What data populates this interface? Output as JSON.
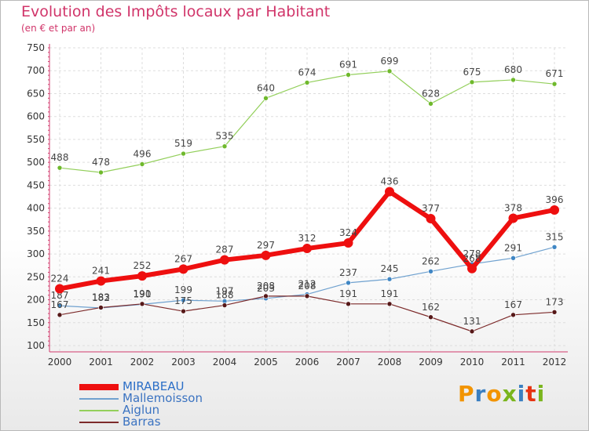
{
  "header": {
    "title": "Evolution des Impôts locaux par Habitant",
    "subtitle": "(en € et par an)"
  },
  "logo": {
    "text": "Proxiti",
    "colors": [
      "#f29400",
      "#3a7fc1",
      "#f29400",
      "#7ab51d",
      "#3a7fc1",
      "#e63312",
      "#7ab51d"
    ]
  },
  "chart_data": {
    "type": "line",
    "title": "Evolution des Impôts locaux par Habitant",
    "subtitle": "(en € et par an)",
    "xlabel": "",
    "ylabel": "",
    "categories": [
      "2000",
      "2001",
      "2002",
      "2003",
      "2004",
      "2005",
      "2006",
      "2007",
      "2008",
      "2009",
      "2010",
      "2011",
      "2012"
    ],
    "ylim": [
      100,
      750
    ],
    "yticks": [
      100,
      150,
      200,
      250,
      300,
      350,
      400,
      450,
      500,
      550,
      600,
      650,
      700,
      750
    ],
    "grid": true,
    "legend_position": "bottom-left",
    "series": [
      {
        "name": "Aiglun",
        "color": "#93cf5b",
        "marker": "#6fb92c",
        "width": 1.2,
        "values": [
          488,
          478,
          496,
          519,
          535,
          640,
          674,
          691,
          699,
          628,
          675,
          680,
          671
        ]
      },
      {
        "name": "Mallemoisson",
        "color": "#6fa1cf",
        "marker": "#3f86c4",
        "width": 1.2,
        "values": [
          187,
          182,
          190,
          199,
          197,
          203,
          212,
          237,
          245,
          262,
          278,
          291,
          315
        ]
      },
      {
        "name": "Barras",
        "color": "#7c2a2a",
        "marker": "#561818",
        "width": 1.2,
        "values": [
          167,
          183,
          191,
          175,
          188,
          208,
          208,
          191,
          191,
          162,
          131,
          167,
          173
        ]
      },
      {
        "name": "MIRABEAU",
        "color": "#ee0f0f",
        "marker": "#ee0f0f",
        "width": 6,
        "values": [
          224,
          241,
          252,
          267,
          287,
          297,
          312,
          324,
          436,
          377,
          268,
          378,
          396
        ]
      }
    ],
    "legend_order": [
      "MIRABEAU",
      "Mallemoisson",
      "Aiglun",
      "Barras"
    ]
  }
}
